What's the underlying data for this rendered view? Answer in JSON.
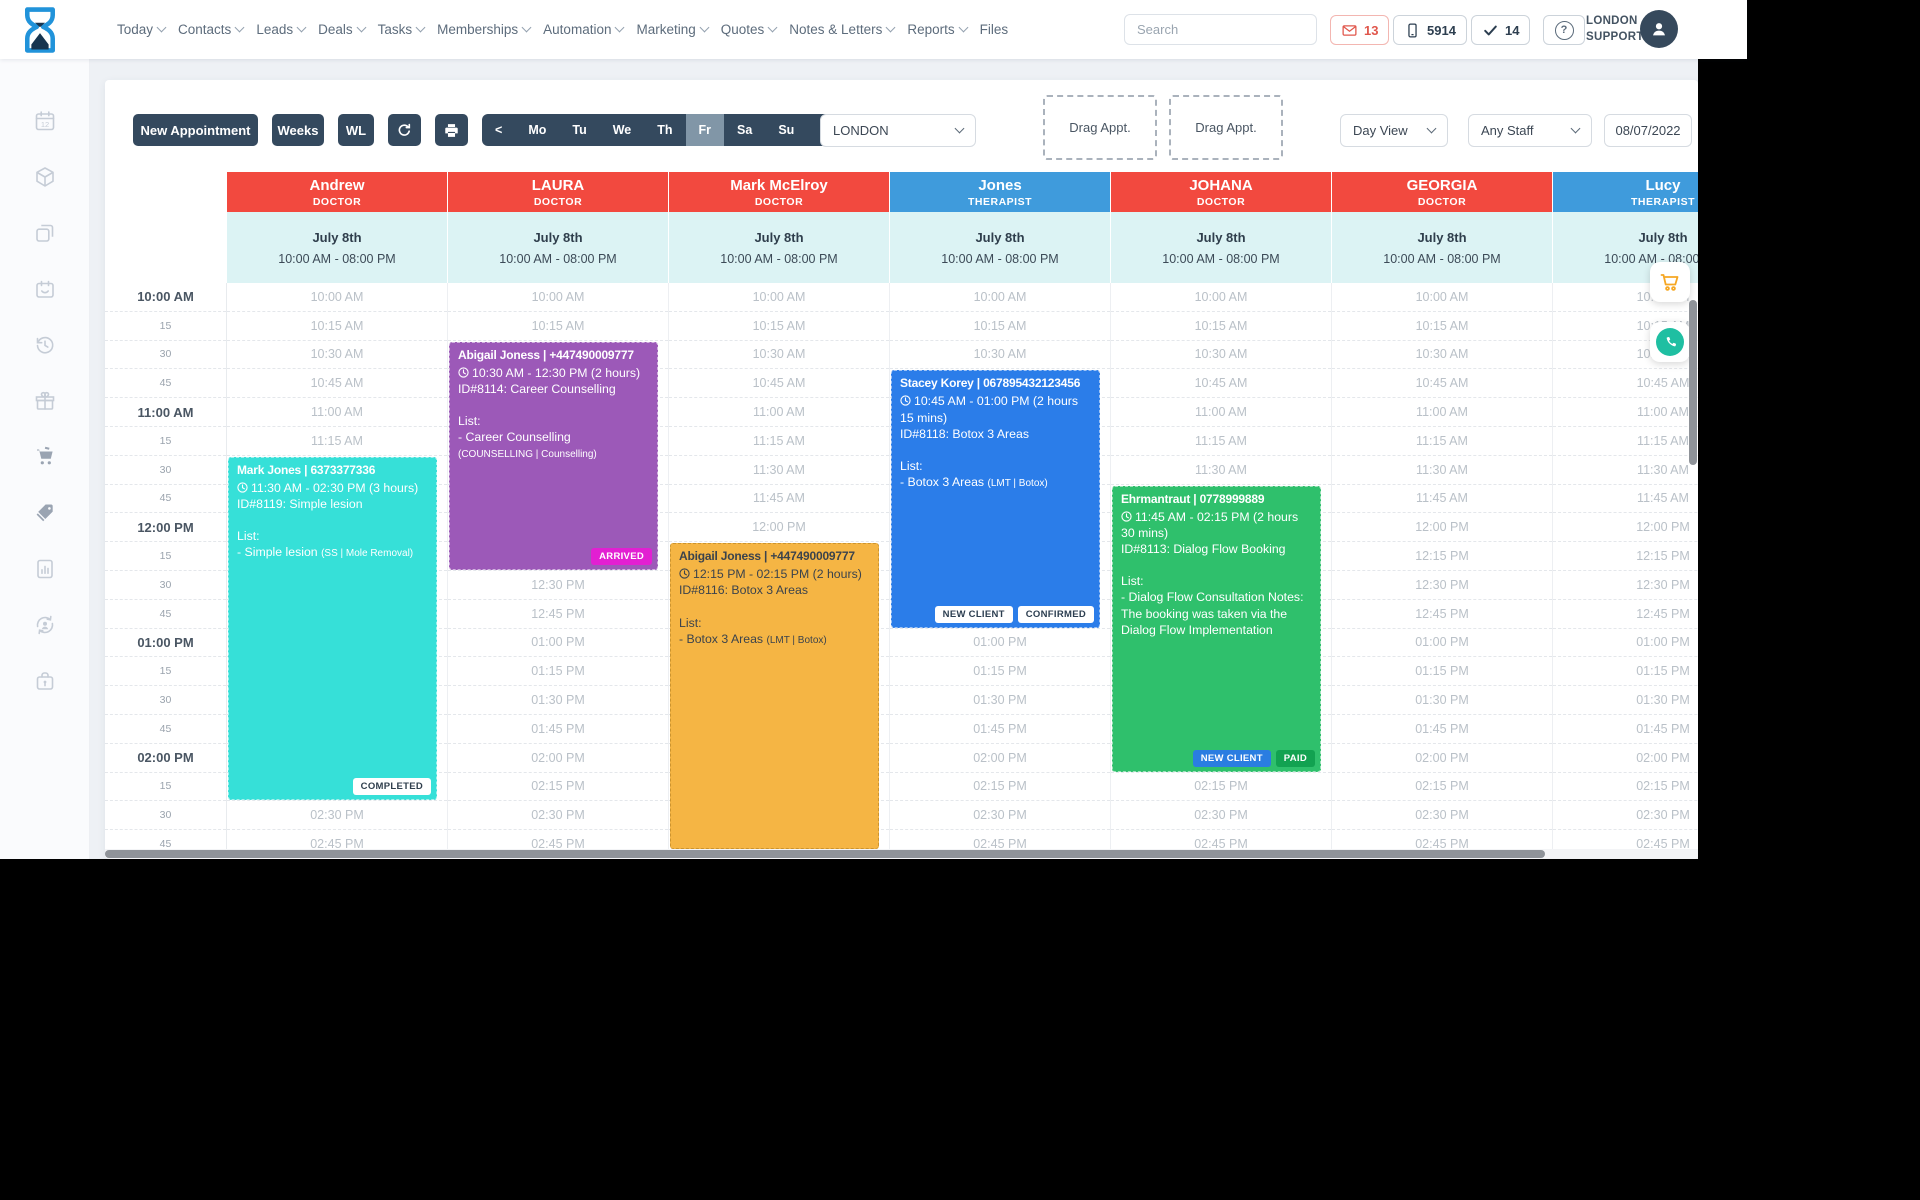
{
  "header": {
    "nav": [
      {
        "label": "Today",
        "chevron": true
      },
      {
        "label": "Contacts",
        "chevron": true
      },
      {
        "label": "Leads",
        "chevron": true
      },
      {
        "label": "Deals",
        "chevron": true
      },
      {
        "label": "Tasks",
        "chevron": true
      },
      {
        "label": "Memberships",
        "chevron": true
      },
      {
        "label": "Automation",
        "chevron": true
      },
      {
        "label": "Marketing",
        "chevron": true
      },
      {
        "label": "Quotes",
        "chevron": true
      },
      {
        "label": "Notes & Letters",
        "chevron": true
      },
      {
        "label": "Reports",
        "chevron": true
      },
      {
        "label": "Files",
        "chevron": false
      }
    ],
    "search_placeholder": "Search",
    "mail_count": "13",
    "phone_count": "5914",
    "task_count": "14",
    "help_label": "?",
    "account_line1": "LONDON",
    "account_line2": "SUPPORT"
  },
  "toolbar": {
    "new_appointment": "New Appointment",
    "weeks": "Weeks",
    "wl": "WL",
    "day_buttons": [
      "<",
      "Mo",
      "Tu",
      "We",
      "Th",
      "Fr",
      "Sa",
      "Su",
      ">"
    ],
    "selected_day": "Fr",
    "location": "LONDON",
    "drag_appt_1": "Drag Appt.",
    "drag_appt_2": "Drag Appt.",
    "view_mode": "Day View",
    "staff_filter": "Any Staff",
    "date": "08/07/2022"
  },
  "colors": {
    "doctor_header": "#f2493f",
    "therapist_header": "#3f9bdc",
    "band_bg": "#dcf3f4",
    "navy": "#34495e",
    "selected_day_bg": "#8196a7"
  },
  "calendar": {
    "columns": [
      {
        "name": "Andrew",
        "role": "DOCTOR",
        "type": "doctor",
        "date": "July 8th",
        "hours": "10:00 AM - 08:00 PM"
      },
      {
        "name": "LAURA",
        "role": "DOCTOR",
        "type": "doctor",
        "date": "July 8th",
        "hours": "10:00 AM - 08:00 PM"
      },
      {
        "name": "Mark McElroy",
        "role": "DOCTOR",
        "type": "doctor",
        "date": "July 8th",
        "hours": "10:00 AM - 08:00 PM"
      },
      {
        "name": "Jones",
        "role": "THERAPIST",
        "type": "therapist",
        "date": "July 8th",
        "hours": "10:00 AM - 08:00 PM"
      },
      {
        "name": "JOHANA",
        "role": "DOCTOR",
        "type": "doctor",
        "date": "July 8th",
        "hours": "10:00 AM - 08:00 PM"
      },
      {
        "name": "GEORGIA",
        "role": "DOCTOR",
        "type": "doctor",
        "date": "July 8th",
        "hours": "10:00 AM - 08:00 PM"
      },
      {
        "name": "Lucy",
        "role": "THERAPIST",
        "type": "therapist",
        "date": "July 8th",
        "hours": "10:00 AM - 08:00 PM"
      }
    ],
    "gutter_labels": [
      "10:00 AM",
      "15",
      "30",
      "45",
      "11:00 AM",
      "15",
      "30",
      "45",
      "12:00 PM",
      "15",
      "30",
      "45",
      "01:00 PM",
      "15",
      "30",
      "45",
      "02:00 PM",
      "15",
      "30",
      "45"
    ],
    "cell_times": [
      "10:00 AM",
      "10:15 AM",
      "10:30 AM",
      "10:45 AM",
      "11:00 AM",
      "11:15 AM",
      "11:30 AM",
      "11:45 AM",
      "12:00 PM",
      "12:15 PM",
      "12:30 PM",
      "12:45 PM",
      "01:00 PM",
      "01:15 PM",
      "01:30 PM",
      "01:45 PM",
      "02:00 PM",
      "02:15 PM",
      "02:30 PM",
      "02:45 PM"
    ],
    "appointments": [
      {
        "column": 0,
        "color": "#36e0d8",
        "text": "light",
        "start": "11:30 AM",
        "end": "02:30 PM",
        "cut_bottom": false,
        "title": "Mark Jones | 6373377336",
        "time": "11:30 AM - 02:30 PM (3 hours)",
        "booking": "ID#8119: Simple lesion",
        "list_label": "List:",
        "service": "- Simple lesion",
        "service_detail": "(SS | Mole Removal)",
        "badges": [
          {
            "label": "COMPLETED",
            "bg": "#ffffff",
            "color": "#2f3e4c"
          }
        ]
      },
      {
        "column": 1,
        "color": "#9c59b8",
        "text": "light",
        "start": "10:30 AM",
        "end": "12:30 PM",
        "cut_bottom": false,
        "title": "Abigail Joness | +447490009777",
        "time": "10:30 AM - 12:30 PM (2 hours)",
        "booking": "ID#8114: Career Counselling",
        "list_label": "List:",
        "service": "- Career Counselling",
        "service_detail": "(COUNSELLING | Counselling)",
        "badges": [
          {
            "label": "ARRIVED",
            "bg": "#e21fd2",
            "color": "#ffffff"
          }
        ]
      },
      {
        "column": 2,
        "color": "#f5b544",
        "text": "dark",
        "start": "12:15 PM",
        "end": "02:15 PM",
        "cut_bottom": true,
        "title": "Abigail Joness | +447490009777",
        "time": "12:15 PM - 02:15 PM (2 hours)",
        "booking": "ID#8116: Botox 3 Areas",
        "list_label": "List:",
        "service": "- Botox 3 Areas",
        "service_detail": "(LMT | Botox)",
        "badges": []
      },
      {
        "column": 3,
        "color": "#2b7de9",
        "text": "light",
        "start": "10:45 AM",
        "end": "01:00 PM",
        "cut_bottom": false,
        "title": "Stacey Korey | 067895432123456",
        "time": "10:45 AM - 01:00 PM (2 hours 15 mins)",
        "booking": "ID#8118: Botox 3 Areas",
        "list_label": "List:",
        "service": "- Botox 3 Areas",
        "service_detail": "(LMT | Botox)",
        "badges": [
          {
            "label": "NEW CLIENT",
            "bg": "#ffffff",
            "color": "#2c3e50"
          },
          {
            "label": "CONFIRMED",
            "bg": "#ffffff",
            "color": "#2c3e50"
          }
        ]
      },
      {
        "column": 4,
        "color": "#2fc06c",
        "text": "light",
        "start": "11:45 AM",
        "end": "02:15 PM",
        "cut_bottom": false,
        "title": "Ehrmantraut | 0778999889",
        "time": "11:45 AM - 02:15 PM (2 hours 30 mins)",
        "booking": "ID#8113: Dialog Flow Booking",
        "list_label": "List:",
        "service": "- Dialog Flow Consultation Notes: The booking was taken via the Dialog Flow Implementation",
        "service_detail": "",
        "badges": [
          {
            "label": "NEW CLIENT",
            "bg": "#2a7de1",
            "color": "#ffffff"
          },
          {
            "label": "PAID",
            "bg": "#12a251",
            "color": "#ffffff"
          }
        ]
      }
    ]
  },
  "sidebar_icons": [
    "calendar",
    "package",
    "copy",
    "booking",
    "history",
    "gift",
    "cart",
    "tags",
    "report",
    "client-sync",
    "secure"
  ],
  "fab_icons": [
    "cart",
    "phone"
  ]
}
